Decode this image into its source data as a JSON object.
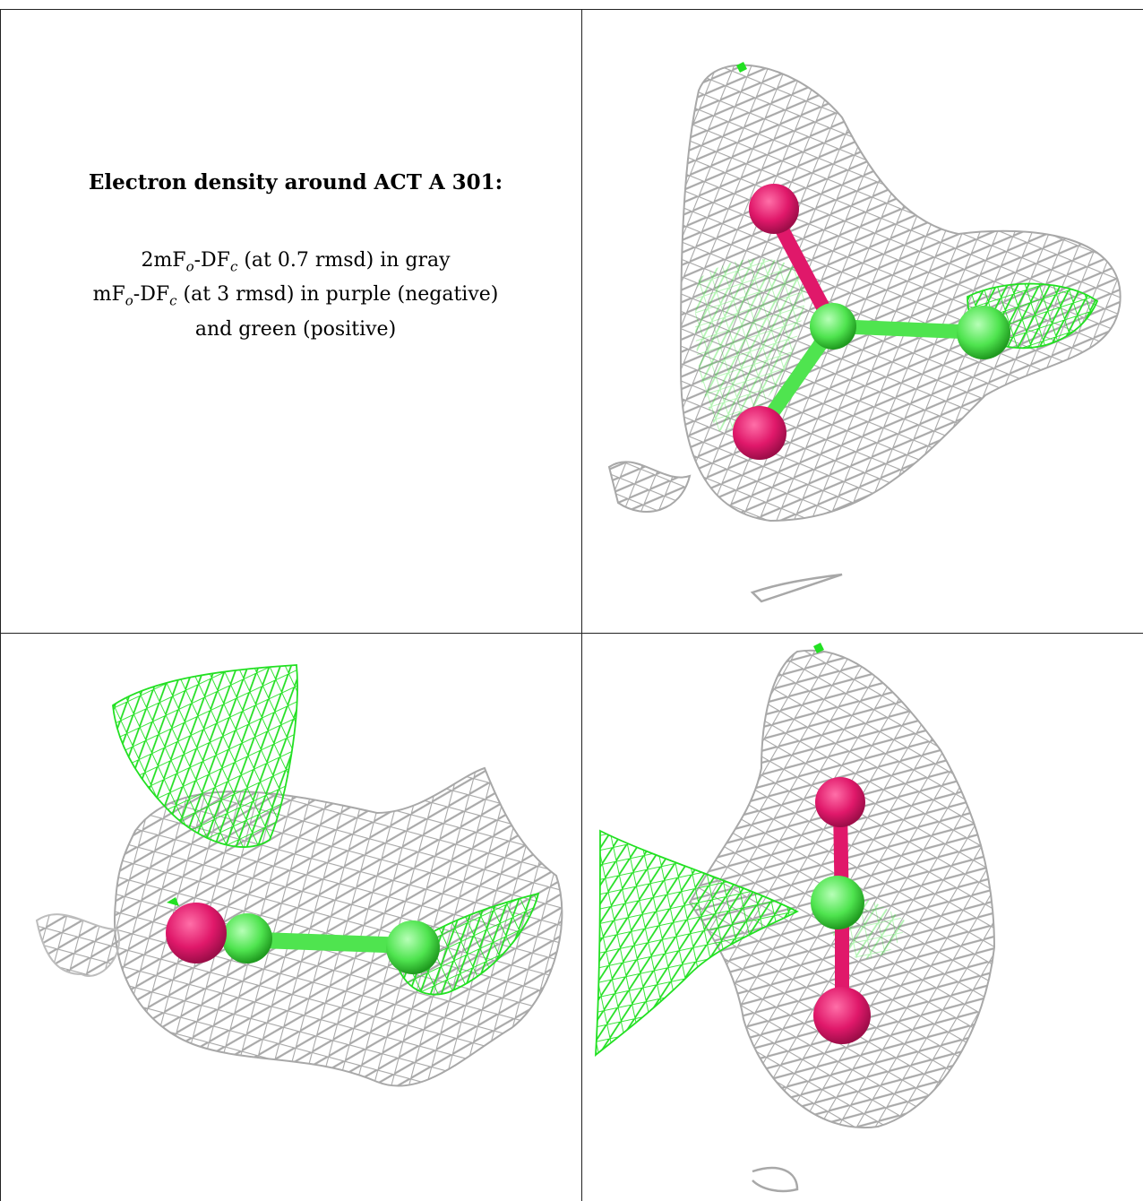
{
  "caption": {
    "title": "Electron density around ACT A 301:",
    "line1_a": "2mF",
    "line1_sub1": "o",
    "line1_b": "-DF",
    "line1_sub2": "c",
    "line1_c": " (at 0.7 rmsd) in gray",
    "line2_a": "mF",
    "line2_sub1": "o",
    "line2_b": "-DF",
    "line2_sub2": "c",
    "line2_c": " (at 3 rmsd) in purple (negative)",
    "line3": "and green (positive)"
  },
  "colors": {
    "mesh_gray": "#a8a8a8",
    "mesh_green": "#22e022",
    "atom_magenta": "#e0186a",
    "atom_green": "#4fe44f",
    "border": "#222222"
  },
  "panels": [
    {
      "name": "view-top-right"
    },
    {
      "name": "view-bottom-left"
    },
    {
      "name": "view-bottom-right"
    }
  ]
}
